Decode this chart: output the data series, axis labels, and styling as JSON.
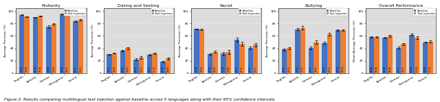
{
  "subplots": [
    {
      "title": "Profanity",
      "ylabel": "Average Precision (%)",
      "ylim": [
        0,
        105
      ],
      "yticks": [
        0,
        20,
        40,
        60,
        80,
        100
      ],
      "languages": [
        "English",
        "Spanish",
        "German",
        "Portuguese",
        "French"
      ],
      "baseline": [
        93.98,
        90.18,
        74.88,
        94.9,
        83.72
      ],
      "text_injection": [
        90.94,
        92.24,
        79.24,
        94.57,
        85.63
      ],
      "baseline_err": [
        0.5,
        0.5,
        2.5,
        0.5,
        0.8
      ],
      "ti_err": [
        0.5,
        0.5,
        1.5,
        0.5,
        0.8
      ]
    },
    {
      "title": "Dating and Sexting",
      "ylabel": "Average Precision (%)",
      "ylim": [
        0,
        105
      ],
      "yticks": [
        0,
        20,
        40,
        60,
        80,
        100
      ],
      "languages": [
        "English",
        "Spanish",
        "German",
        "Portuguese",
        "French"
      ],
      "baseline": [
        30.52,
        36.11,
        22.17,
        29.43,
        19.06
      ],
      "text_injection": [
        32.3,
        40.52,
        25.17,
        31.52,
        23.85
      ],
      "baseline_err": [
        0.8,
        1.0,
        1.5,
        1.0,
        1.0
      ],
      "ti_err": [
        0.8,
        1.5,
        2.0,
        1.2,
        1.5
      ]
    },
    {
      "title": "Racist",
      "ylabel": "Average Precision (%)",
      "ylim": [
        0,
        105
      ],
      "yticks": [
        0,
        20,
        40,
        60,
        80,
        100
      ],
      "languages": [
        "English",
        "Spanish",
        "German",
        "Portuguese",
        "French"
      ],
      "baseline": [
        71.04,
        30.94,
        31.45,
        53.73,
        40.67
      ],
      "text_injection": [
        70.24,
        34.34,
        33.85,
        47.51,
        45.77
      ],
      "baseline_err": [
        0.8,
        1.5,
        2.5,
        3.0,
        2.0
      ],
      "ti_err": [
        0.8,
        1.5,
        3.0,
        3.5,
        2.5
      ]
    },
    {
      "title": "Bullying",
      "ylabel": "Average Precision (%)",
      "ylim": [
        0,
        105
      ],
      "yticks": [
        0,
        20,
        40,
        60,
        80,
        100
      ],
      "languages": [
        "English",
        "Spanish",
        "German",
        "Portuguese",
        "French"
      ],
      "baseline": [
        38.21,
        70.93,
        40.51,
        48.61,
        69.18
      ],
      "text_injection": [
        40.31,
        73.13,
        49.81,
        62.71,
        69.58
      ],
      "baseline_err": [
        1.5,
        1.5,
        2.0,
        1.5,
        1.0
      ],
      "ti_err": [
        1.5,
        2.5,
        3.0,
        2.5,
        1.0
      ]
    },
    {
      "title": "Overall Performance",
      "ylabel": "Mean Average Precision (%)",
      "ylim": [
        0,
        105
      ],
      "yticks": [
        0,
        20,
        40,
        60,
        80,
        100
      ],
      "languages": [
        "English",
        "Spanish",
        "German",
        "Portuguese",
        "French"
      ],
      "baseline": [
        58.46,
        56.95,
        41.17,
        62.05,
        50.04
      ],
      "text_injection": [
        58.46,
        60.06,
        46.77,
        57.26,
        51.14
      ],
      "baseline_err": [
        0.8,
        1.0,
        1.5,
        1.5,
        1.0
      ],
      "ti_err": [
        0.8,
        1.5,
        2.0,
        2.0,
        1.2
      ]
    }
  ],
  "baseline_color": "#4472C4",
  "ti_color": "#ED7D31",
  "bg_color": "#DCDCDC",
  "bar_width": 0.38,
  "caption": "Figure 2: Results comparing multilingual text injection against baseline across 5 languages along with their 95% confidence intervals."
}
